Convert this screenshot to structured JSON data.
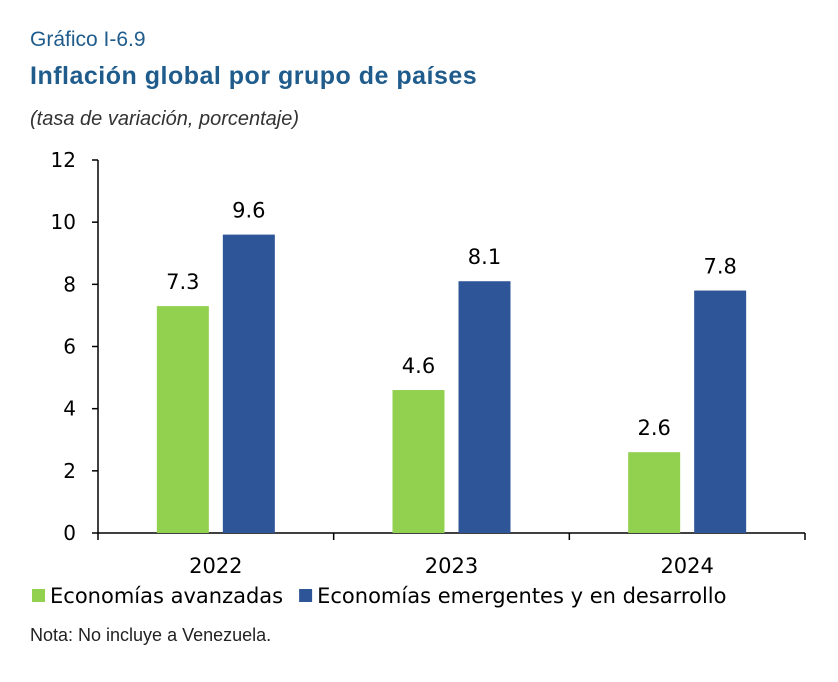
{
  "header": {
    "label": "Gráfico I-6.9",
    "title": "Inflación global por grupo de países",
    "subtitle": "(tasa de variación, porcentaje)"
  },
  "note": "Nota: No incluye a Venezuela.",
  "colors": {
    "advanced": "#92d050",
    "emerging": "#2e5597",
    "title": "#1f5c8c"
  },
  "chart_data": {
    "type": "bar",
    "categories": [
      "2022",
      "2023",
      "2024"
    ],
    "series": [
      {
        "name": "Economías avanzadas",
        "values": [
          7.3,
          4.6,
          2.6
        ]
      },
      {
        "name": "Economías emergentes y en desarrollo",
        "values": [
          9.6,
          8.1,
          7.8
        ]
      }
    ],
    "ylim": [
      0,
      12
    ],
    "yticks": [
      0,
      2,
      4,
      6,
      8,
      10,
      12
    ],
    "grid": false,
    "legend_position": "bottom",
    "data_labels": [
      [
        "7.3",
        "4.6",
        "2.6"
      ],
      [
        "9.6",
        "8.1",
        "7.8"
      ]
    ]
  }
}
